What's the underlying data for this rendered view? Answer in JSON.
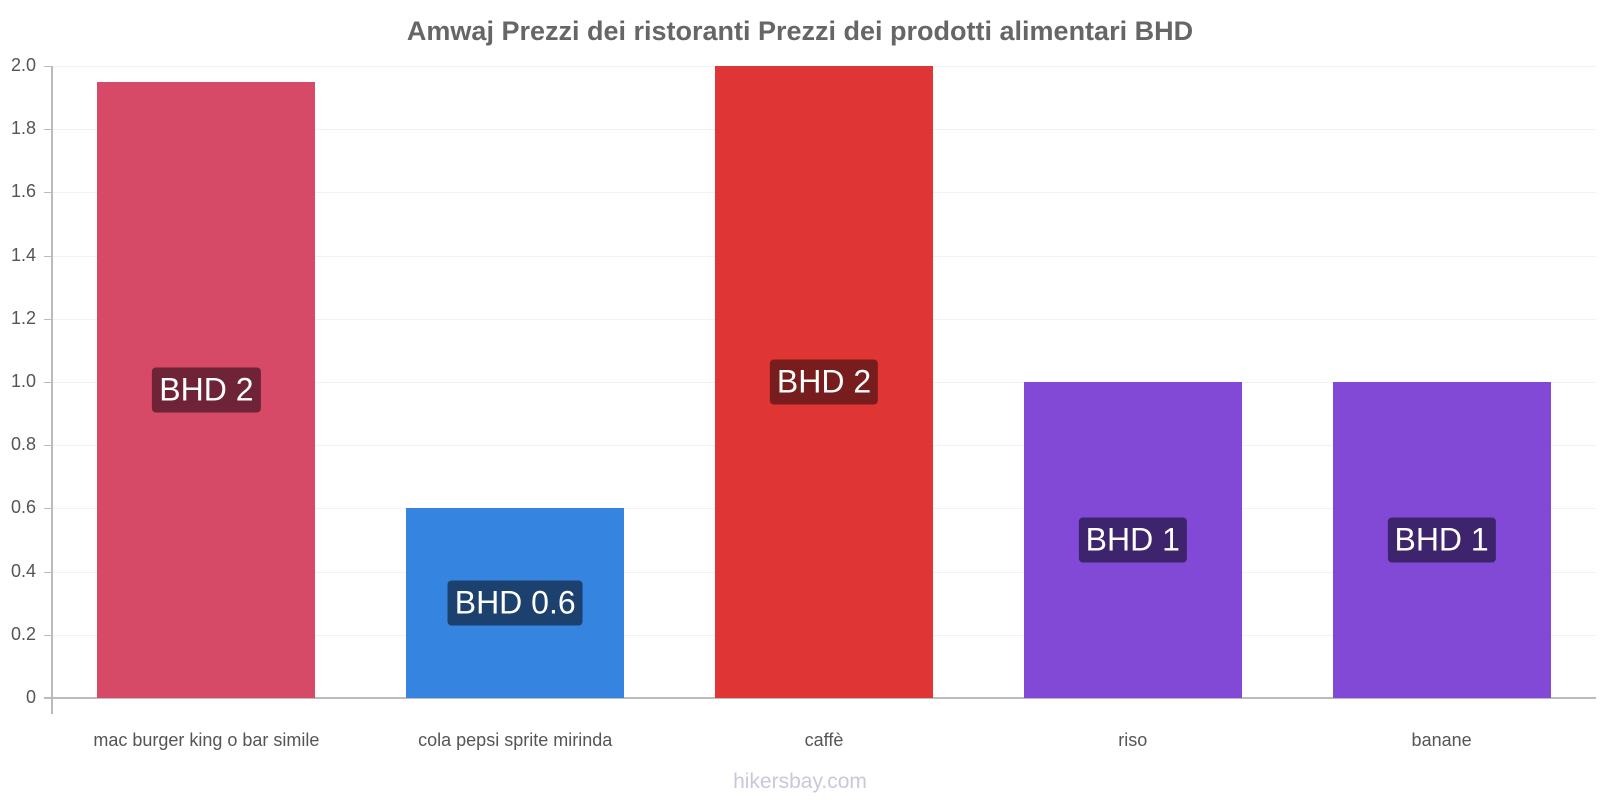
{
  "chart_data": {
    "type": "bar",
    "title": "Amwaj Prezzi dei ristoranti Prezzi dei prodotti alimentari BHD",
    "xlabel": "",
    "ylabel": "",
    "ylim": [
      0,
      2.0
    ],
    "yticks": [
      "0",
      "0.2",
      "0.4",
      "0.6",
      "0.8",
      "1.0",
      "1.2",
      "1.4",
      "1.6",
      "1.8",
      "2.0"
    ],
    "categories": [
      "mac burger king o bar simile",
      "cola pepsi sprite mirinda",
      "caffè",
      "riso",
      "banane"
    ],
    "values": [
      1.95,
      0.6,
      2.0,
      1.0,
      1.0
    ],
    "data_labels": [
      "BHD 2",
      "BHD 0.6",
      "BHD 2",
      "BHD 1",
      "BHD 1"
    ],
    "colors": [
      "#d64a67",
      "#3584e0",
      "#e03535",
      "#8249d6",
      "#8249d6"
    ],
    "label_colors": [
      "#6e2336",
      "#1c416e",
      "#781d1d",
      "#3e246c",
      "#3e246c"
    ],
    "grid": true,
    "legend": "none"
  },
  "watermark": "hikersbay.com"
}
